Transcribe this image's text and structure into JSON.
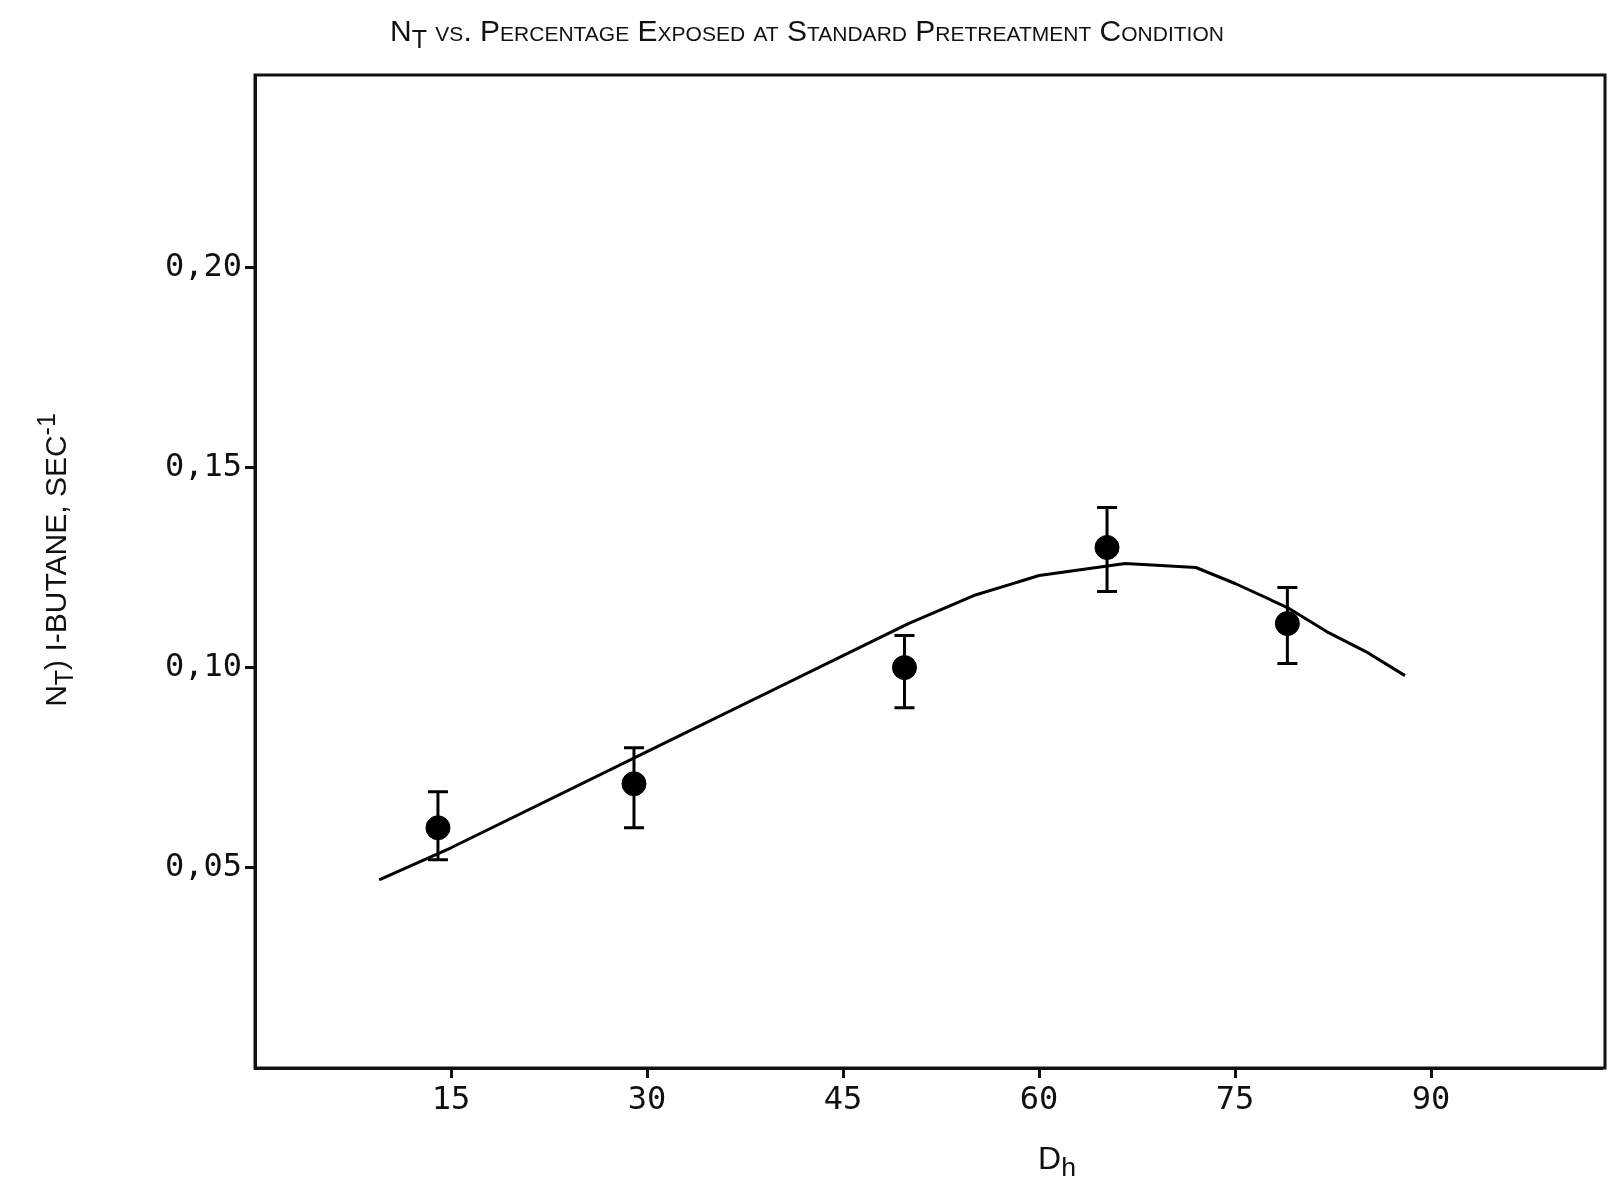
{
  "chart_data": {
    "type": "scatter",
    "title": "N$_{T}$ vs. Percentage Exposed at Standard Pretreatment Condition",
    "xlabel": "D$_{h}$",
    "ylabel": "N$_{T}$) I-BUTANE, SEC$^{-1}$",
    "xlim": [
      0,
      103
    ],
    "xticks": [
      15,
      30,
      45,
      60,
      75,
      90
    ],
    "ylim": [
      0,
      0.248
    ],
    "yticks": [
      {
        "value": 0.05,
        "label": "0,05"
      },
      {
        "value": 0.1,
        "label": "0,10"
      },
      {
        "value": 0.15,
        "label": "0,15"
      },
      {
        "value": 0.2,
        "label": "0,20"
      }
    ],
    "grid": false,
    "legend": false,
    "marker": "circle",
    "series": [
      {
        "type": "scatter",
        "color": "#000000",
        "x": [
          14,
          29,
          49.7,
          65.2,
          79
        ],
        "values": [
          0.06,
          0.071,
          0.1,
          0.13,
          0.111
        ],
        "errors": [
          [
            0.052,
            0.069
          ],
          [
            0.06,
            0.08
          ],
          [
            0.09,
            0.108
          ],
          [
            0.119,
            0.14
          ],
          [
            0.101,
            0.12
          ]
        ]
      },
      {
        "type": "line",
        "color": "#000000",
        "marker": "none",
        "x": [
          9.5,
          15,
          30,
          45,
          50,
          55,
          60,
          66.6,
          72,
          75,
          79,
          82,
          85,
          88
        ],
        "values": [
          0.047,
          0.055,
          0.079,
          0.103,
          0.111,
          0.118,
          0.123,
          0.126,
          0.125,
          0.121,
          0.115,
          0.109,
          0.104,
          0.098
        ]
      }
    ]
  }
}
